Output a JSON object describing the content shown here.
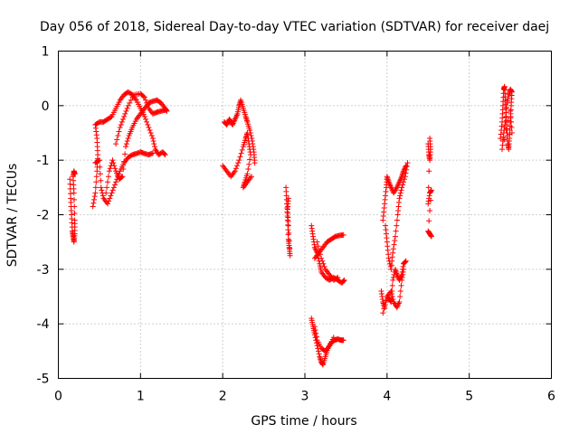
{
  "chart_data": {
    "type": "scatter",
    "title": "Day 056 of 2018, Sidereal Day-to-day VTEC variation (SDTVAR) for receiver daej",
    "xlabel": "GPS time / hours",
    "ylabel": "SDTVAR / TECUs",
    "xlim": [
      0,
      6
    ],
    "ylim": [
      -5,
      1
    ],
    "xticks": [
      "0",
      "1",
      "2",
      "3",
      "4",
      "5",
      "6"
    ],
    "yticks": [
      "1",
      "0",
      "-1",
      "-2",
      "-3",
      "-4",
      "-5"
    ],
    "grid": true,
    "marker": "plus",
    "series": [
      {
        "color": "#ff0000",
        "segments": [
          [
            [
              0.14,
              -1.35
            ],
            [
              0.15,
              -1.7
            ],
            [
              0.16,
              -2.0
            ],
            [
              0.17,
              -2.3
            ],
            [
              0.18,
              -2.4
            ],
            [
              0.19,
              -2.5
            ],
            [
              0.2,
              -2.35
            ],
            [
              0.2,
              -2.1
            ],
            [
              0.19,
              -1.6
            ],
            [
              0.18,
              -1.3
            ],
            [
              0.19,
              -1.2
            ],
            [
              0.2,
              -1.25
            ]
          ],
          [
            [
              0.42,
              -1.85
            ],
            [
              0.45,
              -1.6
            ],
            [
              0.47,
              -1.2
            ],
            [
              0.48,
              -0.9
            ],
            [
              0.47,
              -0.6
            ],
            [
              0.45,
              -0.35
            ],
            [
              0.5,
              -0.3
            ],
            [
              0.55,
              -0.3
            ],
            [
              0.6,
              -0.25
            ],
            [
              0.65,
              -0.2
            ],
            [
              0.7,
              -0.05
            ],
            [
              0.75,
              0.1
            ],
            [
              0.8,
              0.2
            ],
            [
              0.85,
              0.25
            ],
            [
              0.9,
              0.2
            ],
            [
              0.95,
              0.1
            ],
            [
              1.0,
              -0.05
            ],
            [
              1.05,
              -0.2
            ],
            [
              1.1,
              -0.4
            ],
            [
              1.15,
              -0.6
            ],
            [
              1.18,
              -0.8
            ],
            [
              1.22,
              -0.9
            ],
            [
              1.27,
              -0.85
            ],
            [
              1.3,
              -0.9
            ]
          ],
          [
            [
              0.45,
              -1.05
            ],
            [
              0.5,
              -1.0
            ],
            [
              0.52,
              -1.5
            ],
            [
              0.55,
              -1.7
            ],
            [
              0.6,
              -1.8
            ],
            [
              0.65,
              -1.6
            ],
            [
              0.7,
              -1.4
            ],
            [
              0.75,
              -1.2
            ],
            [
              0.8,
              -1.05
            ],
            [
              0.85,
              -0.95
            ],
            [
              0.9,
              -0.9
            ],
            [
              0.95,
              -0.88
            ],
            [
              1.0,
              -0.85
            ],
            [
              1.05,
              -0.88
            ],
            [
              1.1,
              -0.9
            ],
            [
              1.15,
              -0.87
            ]
          ],
          [
            [
              0.58,
              -1.6
            ],
            [
              0.62,
              -1.2
            ],
            [
              0.66,
              -1.0
            ],
            [
              0.7,
              -1.2
            ],
            [
              0.74,
              -1.35
            ],
            [
              0.78,
              -1.3
            ],
            [
              0.82,
              -0.75
            ],
            [
              0.86,
              -0.55
            ],
            [
              0.9,
              -0.4
            ],
            [
              0.95,
              -0.25
            ],
            [
              1.0,
              -0.15
            ],
            [
              1.05,
              -0.05
            ],
            [
              1.1,
              0.05
            ],
            [
              1.15,
              0.08
            ],
            [
              1.2,
              0.1
            ],
            [
              1.25,
              0.05
            ],
            [
              1.3,
              -0.05
            ],
            [
              1.32,
              -0.1
            ]
          ],
          [
            [
              0.7,
              -0.7
            ],
            [
              0.75,
              -0.4
            ],
            [
              0.8,
              -0.2
            ],
            [
              0.85,
              0.0
            ],
            [
              0.92,
              0.2
            ],
            [
              1.0,
              0.22
            ],
            [
              1.05,
              0.15
            ],
            [
              1.1,
              -0.05
            ],
            [
              1.15,
              -0.15
            ],
            [
              1.2,
              -0.12
            ],
            [
              1.25,
              -0.1
            ],
            [
              1.3,
              -0.08
            ]
          ],
          [
            [
              2.02,
              -0.3
            ],
            [
              2.05,
              -0.35
            ],
            [
              2.08,
              -0.25
            ],
            [
              2.1,
              -0.3
            ],
            [
              2.12,
              -0.35
            ],
            [
              2.15,
              -0.25
            ],
            [
              2.18,
              -0.15
            ],
            [
              2.2,
              0.0
            ],
            [
              2.22,
              0.1
            ],
            [
              2.25,
              -0.05
            ],
            [
              2.28,
              -0.2
            ],
            [
              2.3,
              -0.3
            ],
            [
              2.33,
              -0.45
            ],
            [
              2.36,
              -0.65
            ],
            [
              2.38,
              -0.85
            ],
            [
              2.39,
              -1.05
            ]
          ],
          [
            [
              2.0,
              -1.1
            ],
            [
              2.05,
              -1.2
            ],
            [
              2.1,
              -1.3
            ],
            [
              2.15,
              -1.2
            ],
            [
              2.2,
              -1.0
            ],
            [
              2.25,
              -0.75
            ],
            [
              2.28,
              -0.6
            ],
            [
              2.3,
              -0.5
            ],
            [
              2.32,
              -0.7
            ],
            [
              2.34,
              -0.9
            ],
            [
              2.3,
              -1.25
            ],
            [
              2.27,
              -1.4
            ],
            [
              2.25,
              -1.5
            ],
            [
              2.3,
              -1.4
            ],
            [
              2.35,
              -1.3
            ]
          ],
          [
            [
              2.77,
              -1.5
            ],
            [
              2.78,
              -1.8
            ],
            [
              2.79,
              -2.1
            ],
            [
              2.8,
              -2.45
            ],
            [
              2.81,
              -2.6
            ],
            [
              2.82,
              -2.75
            ],
            [
              2.8,
              -2.2
            ],
            [
              2.79,
              -1.9
            ],
            [
              2.8,
              -1.7
            ]
          ],
          [
            [
              3.08,
              -2.2
            ],
            [
              3.1,
              -2.4
            ],
            [
              3.12,
              -2.6
            ],
            [
              3.15,
              -2.7
            ],
            [
              3.18,
              -2.9
            ],
            [
              3.2,
              -3.05
            ],
            [
              3.25,
              -3.15
            ],
            [
              3.3,
              -3.2
            ],
            [
              3.35,
              -3.15
            ],
            [
              3.4,
              -3.2
            ],
            [
              3.45,
              -3.25
            ],
            [
              3.48,
              -3.2
            ]
          ],
          [
            [
              3.12,
              -2.8
            ],
            [
              3.17,
              -2.7
            ],
            [
              3.22,
              -2.6
            ],
            [
              3.27,
              -2.5
            ],
            [
              3.32,
              -2.45
            ],
            [
              3.37,
              -2.4
            ],
            [
              3.42,
              -2.38
            ],
            [
              3.47,
              -2.37
            ]
          ],
          [
            [
              3.15,
              -2.5
            ],
            [
              3.2,
              -2.8
            ],
            [
              3.25,
              -3.0
            ],
            [
              3.3,
              -3.1
            ],
            [
              3.35,
              -3.2
            ],
            [
              3.4,
              -3.15
            ]
          ],
          [
            [
              3.08,
              -3.9
            ],
            [
              3.1,
              -4.05
            ],
            [
              3.12,
              -4.2
            ],
            [
              3.15,
              -4.4
            ],
            [
              3.18,
              -4.6
            ],
            [
              3.2,
              -4.7
            ],
            [
              3.22,
              -4.75
            ],
            [
              3.25,
              -4.6
            ],
            [
              3.28,
              -4.45
            ],
            [
              3.32,
              -4.35
            ],
            [
              3.36,
              -4.3
            ],
            [
              3.4,
              -4.28
            ],
            [
              3.44,
              -4.3
            ],
            [
              3.47,
              -4.3
            ]
          ],
          [
            [
              3.12,
              -4.05
            ],
            [
              3.15,
              -4.3
            ],
            [
              3.2,
              -4.45
            ],
            [
              3.25,
              -4.5
            ],
            [
              3.3,
              -4.4
            ],
            [
              3.35,
              -4.25
            ]
          ],
          [
            [
              3.95,
              -2.1
            ],
            [
              3.97,
              -1.8
            ],
            [
              3.99,
              -1.5
            ],
            [
              4.0,
              -1.3
            ],
            [
              4.02,
              -1.4
            ],
            [
              4.05,
              -1.5
            ],
            [
              4.08,
              -1.6
            ],
            [
              4.12,
              -1.5
            ],
            [
              4.15,
              -1.4
            ],
            [
              4.18,
              -1.3
            ],
            [
              4.2,
              -1.2
            ],
            [
              4.23,
              -1.1
            ]
          ],
          [
            [
              3.98,
              -2.2
            ],
            [
              4.0,
              -2.5
            ],
            [
              4.02,
              -2.8
            ],
            [
              4.05,
              -3.0
            ],
            [
              4.07,
              -2.7
            ],
            [
              4.1,
              -2.4
            ],
            [
              4.13,
              -2.0
            ],
            [
              4.15,
              -1.7
            ],
            [
              4.18,
              -1.5
            ],
            [
              4.22,
              -1.3
            ],
            [
              4.25,
              -1.05
            ]
          ],
          [
            [
              3.93,
              -3.4
            ],
            [
              3.95,
              -3.6
            ],
            [
              3.97,
              -3.7
            ],
            [
              4.0,
              -3.5
            ],
            [
              4.03,
              -3.55
            ],
            [
              4.05,
              -3.6
            ],
            [
              4.07,
              -3.2
            ],
            [
              4.1,
              -3.0
            ],
            [
              4.12,
              -3.1
            ],
            [
              4.15,
              -3.2
            ],
            [
              4.18,
              -3.1
            ],
            [
              4.2,
              -2.9
            ],
            [
              4.23,
              -2.85
            ]
          ],
          [
            [
              3.95,
              -3.8
            ],
            [
              4.0,
              -3.5
            ],
            [
              4.05,
              -3.4
            ],
            [
              4.08,
              -3.6
            ],
            [
              4.12,
              -3.7
            ],
            [
              4.15,
              -3.6
            ],
            [
              4.18,
              -3.2
            ],
            [
              4.2,
              -3.0
            ]
          ],
          [
            [
              4.5,
              -0.7
            ],
            [
              4.51,
              -0.9
            ],
            [
              4.52,
              -1.0
            ],
            [
              4.53,
              -0.8
            ],
            [
              4.52,
              -0.6
            ],
            [
              4.5,
              -1.8
            ],
            [
              4.52,
              -1.6
            ],
            [
              4.54,
              -1.55
            ],
            [
              4.5,
              -2.3
            ],
            [
              4.52,
              -2.35
            ],
            [
              4.54,
              -2.4
            ]
          ],
          [
            [
              5.38,
              -0.6
            ],
            [
              5.4,
              -0.3
            ],
            [
              5.41,
              0.0
            ],
            [
              5.42,
              0.3
            ],
            [
              5.43,
              0.35
            ],
            [
              5.44,
              0.1
            ],
            [
              5.45,
              -0.2
            ],
            [
              5.46,
              -0.5
            ],
            [
              5.47,
              -0.7
            ],
            [
              5.48,
              -0.8
            ],
            [
              5.49,
              -0.6
            ],
            [
              5.5,
              -0.3
            ],
            [
              5.51,
              0.0
            ],
            [
              5.52,
              0.25
            ],
            [
              5.5,
              0.3
            ],
            [
              5.48,
              0.2
            ],
            [
              5.46,
              0.05
            ],
            [
              5.44,
              -0.3
            ],
            [
              5.42,
              -0.5
            ],
            [
              5.4,
              -0.8
            ],
            [
              5.5,
              -0.1
            ],
            [
              5.52,
              -0.5
            ]
          ]
        ]
      }
    ]
  }
}
